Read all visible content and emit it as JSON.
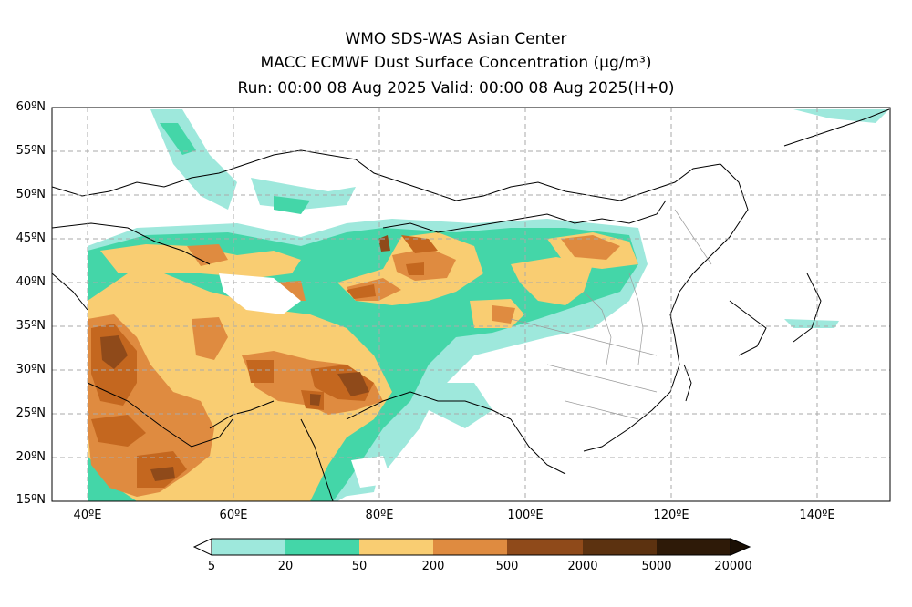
{
  "titles": {
    "line1": "WMO SDS-WAS Asian Center",
    "line2": "MACC ECMWF Dust Surface Concentration (μg/m³)",
    "line3": "Run: 00:00 08 Aug 2025    Valid: 00:00 08 Aug 2025(H+0)"
  },
  "axes": {
    "lat_labels": [
      "60ºN",
      "55ºN",
      "50ºN",
      "45ºN",
      "40ºN",
      "35ºN",
      "30ºN",
      "25ºN",
      "20ºN",
      "15ºN"
    ],
    "lon_labels": [
      "40ºE",
      "60ºE",
      "80ºE",
      "100ºE",
      "120ºE",
      "140ºE"
    ]
  },
  "colorbar": {
    "ticks": [
      "5",
      "20",
      "50",
      "200",
      "500",
      "2000",
      "5000",
      "20000"
    ],
    "colors": [
      "#9ee8dc",
      "#44d6a8",
      "#f9cd72",
      "#df8b40",
      "#c4671f",
      "#8f4a1a",
      "#5c3210",
      "#2e1a08"
    ]
  }
}
